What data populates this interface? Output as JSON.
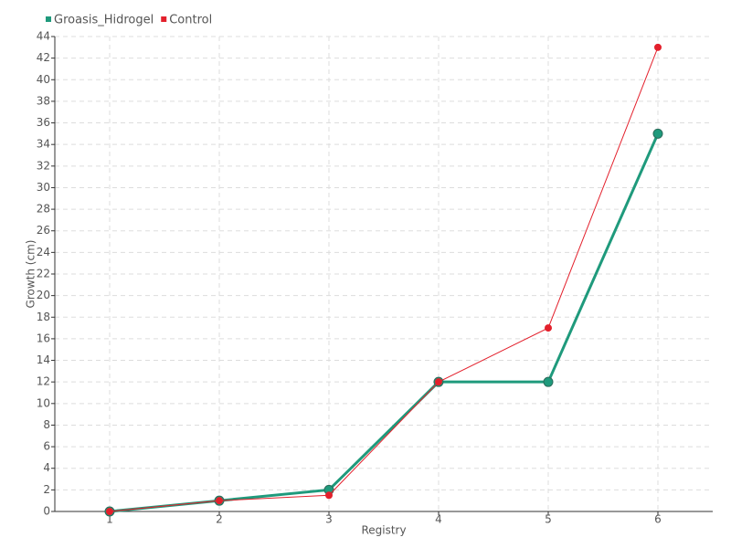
{
  "chart_data": {
    "type": "line",
    "x_label": "Registry",
    "y_label": "Growth (cm)",
    "x": [
      1,
      2,
      3,
      4,
      5,
      6
    ],
    "series": [
      {
        "name": "Groasis_Hidrogel",
        "color": "#1f9a7c",
        "values": [
          0,
          1,
          2,
          12,
          12,
          35
        ]
      },
      {
        "name": "Control",
        "color": "#e3202c",
        "values": [
          0,
          1,
          1.5,
          12,
          17,
          43
        ]
      }
    ],
    "xlim": [
      0.5,
      6.5
    ],
    "xticks": [
      1,
      2,
      3,
      4,
      5,
      6
    ],
    "ylim": [
      0,
      44
    ],
    "yticks": [
      0,
      2,
      4,
      6,
      8,
      10,
      12,
      14,
      16,
      18,
      20,
      22,
      24,
      26,
      28,
      30,
      32,
      34,
      36,
      38,
      40,
      42,
      44
    ],
    "grid": true,
    "legend": "top-left"
  }
}
